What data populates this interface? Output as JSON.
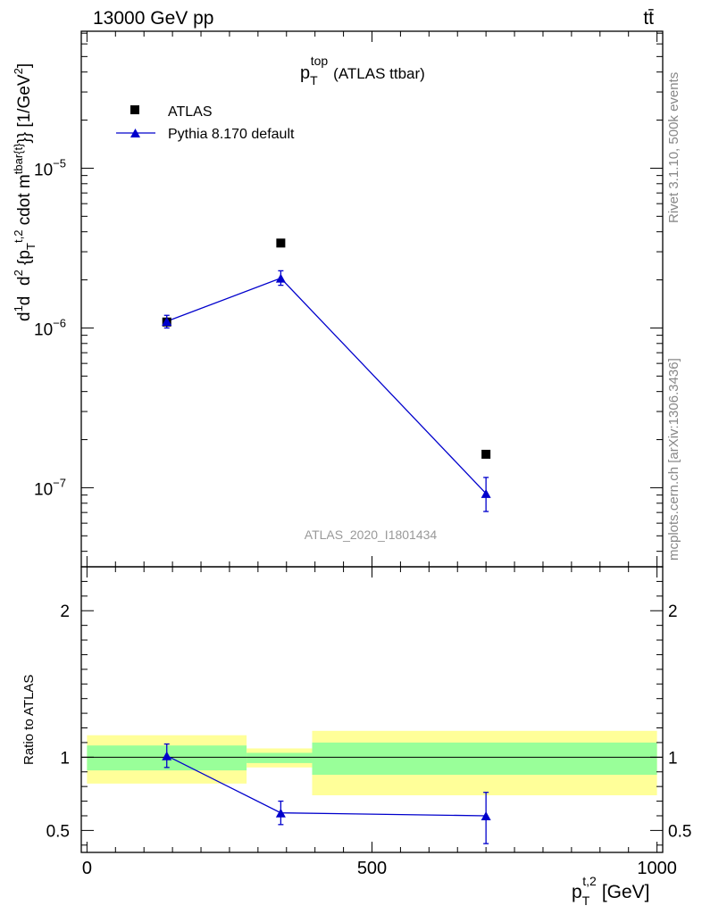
{
  "chart_data": {
    "type": "scatter",
    "header_left": "13000 GeV pp",
    "header_right": "tt̄",
    "title_main": "p",
    "title_sub": "T",
    "title_sup": "top",
    "title_rest": "(ATLAS ttbar)",
    "analysis_tag": "ATLAS_2020_I1801434",
    "side_text_top": "Rivet 3.1.10,  500k events",
    "side_text_bottom": "mcplots.cern.ch [arXiv:1306.3436]",
    "ylabel": "d²σ^fid / d²{p_T^t,2 cdot m_ttbar{t}} [1/GeV²]",
    "ylabel_rest": "[1/GeV",
    "ratio_ylabel": "Ratio to ATLAS",
    "xlabel": "p",
    "xlabel_sub": "T",
    "xlabel_sup": "t,2",
    "xlabel_unit": "[GeV]",
    "xlim": [
      -10,
      1010
    ],
    "ylim_log": [
      3.2e-08,
      7.2e-05
    ],
    "ratio_ylim": [
      0.35,
      2.3
    ],
    "x_ticks": [
      0,
      500,
      1000
    ],
    "x_tick_labels": [
      "0",
      "500",
      "1000"
    ],
    "y_tick_values": [
      1e-07,
      1e-06,
      1e-05
    ],
    "y_tick_labels": [
      {
        "base": "10",
        "exp": "−7"
      },
      {
        "base": "10",
        "exp": "−6"
      },
      {
        "base": "10",
        "exp": "−5"
      }
    ],
    "ratio_tick_values": [
      0.5,
      1,
      2
    ],
    "ratio_tick_labels": [
      "0.5",
      "1",
      "2"
    ],
    "legend": {
      "data_label": "ATLAS",
      "mc_label": "Pythia 8.170 default"
    },
    "colors": {
      "data": "#000000",
      "mc": "#0000cc",
      "band_inner": "#99ff99",
      "band_outer": "#ffff99"
    },
    "data_points": [
      {
        "x": 140,
        "y": 1.09e-06
      },
      {
        "x": 340,
        "y": 3.4e-06
      },
      {
        "x": 700,
        "y": 1.62e-07
      }
    ],
    "mc_points": [
      {
        "x": 140,
        "y": 1.1e-06,
        "ylo": 1e-06,
        "yhi": 1.2e-06
      },
      {
        "x": 340,
        "y": 2.05e-06,
        "ylo": 1.85e-06,
        "yhi": 2.28e-06
      },
      {
        "x": 700,
        "y": 9.2e-08,
        "ylo": 7.1e-08,
        "yhi": 1.16e-07
      }
    ],
    "ratio_bands": [
      {
        "x0": 0,
        "x1": 280,
        "in_lo": 0.91,
        "in_hi": 1.08,
        "out_lo": 0.82,
        "out_hi": 1.15
      },
      {
        "x0": 280,
        "x1": 395,
        "in_lo": 0.96,
        "in_hi": 1.03,
        "out_lo": 0.93,
        "out_hi": 1.06
      },
      {
        "x0": 395,
        "x1": 1000,
        "in_lo": 0.88,
        "in_hi": 1.1,
        "out_lo": 0.74,
        "out_hi": 1.18
      }
    ],
    "ratio_points": [
      {
        "x": 140,
        "y": 1.01,
        "ylo": 0.93,
        "yhi": 1.09
      },
      {
        "x": 340,
        "y": 0.62,
        "ylo": 0.54,
        "yhi": 0.7
      },
      {
        "x": 700,
        "y": 0.6,
        "ylo": 0.41,
        "yhi": 0.76
      }
    ]
  }
}
